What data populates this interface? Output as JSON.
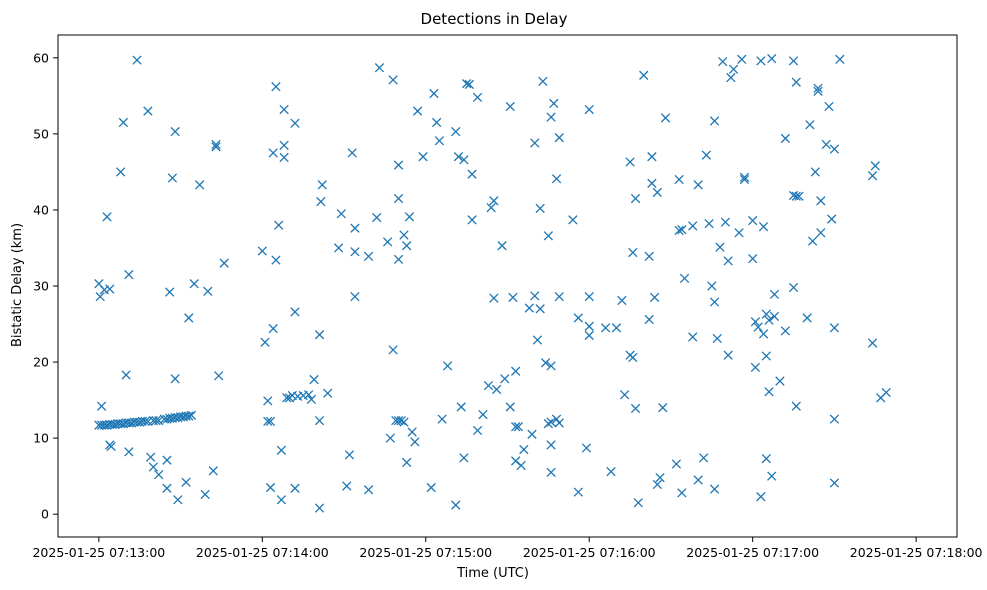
{
  "chart_data": {
    "type": "scatter",
    "title": "Detections in Delay",
    "xlabel": "Time (UTC)",
    "ylabel": "Bistatic Delay (km)",
    "marker": "x",
    "color": "#1f77b4",
    "grid": false,
    "legend": "none",
    "x_unit": "seconds after 2025-01-25 07:13:00",
    "xlim": [
      -15,
      315
    ],
    "ylim": [
      -3,
      63
    ],
    "x_ticks": [
      {
        "value": 0,
        "label": "2025-01-25 07:13:00"
      },
      {
        "value": 60,
        "label": "2025-01-25 07:14:00"
      },
      {
        "value": 120,
        "label": "2025-01-25 07:15:00"
      },
      {
        "value": 180,
        "label": "2025-01-25 07:16:00"
      },
      {
        "value": 240,
        "label": "2025-01-25 07:17:00"
      },
      {
        "value": 300,
        "label": "2025-01-25 07:18:00"
      }
    ],
    "y_ticks": [
      {
        "value": 0,
        "label": "0"
      },
      {
        "value": 10,
        "label": "10"
      },
      {
        "value": 20,
        "label": "20"
      },
      {
        "value": 30,
        "label": "30"
      },
      {
        "value": 40,
        "label": "40"
      },
      {
        "value": 50,
        "label": "50"
      },
      {
        "value": 60,
        "label": "60"
      }
    ],
    "series": [
      {
        "points": [
          [
            0.0,
            11.7
          ],
          [
            1.0,
            11.7
          ],
          [
            2.0,
            11.7
          ],
          [
            3.0,
            11.7
          ],
          [
            4.0,
            11.8
          ],
          [
            5.0,
            11.8
          ],
          [
            6.0,
            11.8
          ],
          [
            7.0,
            11.9
          ],
          [
            8.0,
            11.9
          ],
          [
            9.0,
            11.9
          ],
          [
            10.0,
            12.0
          ],
          [
            11.0,
            12.0
          ],
          [
            12.0,
            12.0
          ],
          [
            13.0,
            12.1
          ],
          [
            14.0,
            12.1
          ],
          [
            15.0,
            12.1
          ],
          [
            16.0,
            12.2
          ],
          [
            17.0,
            12.2
          ],
          [
            18.0,
            12.2
          ],
          [
            20.0,
            12.3
          ],
          [
            21.0,
            12.3
          ],
          [
            22.0,
            12.3
          ],
          [
            24.0,
            12.5
          ],
          [
            25.0,
            12.5
          ],
          [
            26.0,
            12.6
          ],
          [
            27.0,
            12.6
          ],
          [
            28.0,
            12.7
          ],
          [
            29.0,
            12.7
          ],
          [
            30.0,
            12.8
          ],
          [
            31.0,
            12.8
          ],
          [
            32.0,
            12.9
          ],
          [
            33.0,
            12.9
          ],
          [
            34.0,
            13.0
          ],
          [
            0.0,
            30.3
          ],
          [
            0.5,
            28.6
          ],
          [
            1.0,
            14.2
          ],
          [
            2.0,
            29.5
          ],
          [
            3.0,
            39.1
          ],
          [
            4.0,
            9.1
          ],
          [
            4.5,
            8.9
          ],
          [
            4.0,
            29.6
          ],
          [
            8.0,
            45.0
          ],
          [
            9.0,
            51.5
          ],
          [
            10.0,
            18.3
          ],
          [
            11.0,
            8.2
          ],
          [
            11.0,
            31.5
          ],
          [
            14.0,
            59.7
          ],
          [
            18.0,
            53.0
          ],
          [
            19.0,
            7.5
          ],
          [
            20.0,
            6.2
          ],
          [
            22.0,
            5.2
          ],
          [
            25.0,
            7.1
          ],
          [
            25.0,
            3.4
          ],
          [
            26.0,
            29.2
          ],
          [
            27.0,
            44.2
          ],
          [
            28.0,
            50.3
          ],
          [
            28.0,
            17.8
          ],
          [
            29.0,
            1.9
          ],
          [
            32.0,
            4.2
          ],
          [
            33.0,
            25.8
          ],
          [
            35.0,
            30.3
          ],
          [
            37.0,
            43.3
          ],
          [
            39.0,
            2.6
          ],
          [
            40.0,
            29.3
          ],
          [
            42.0,
            5.7
          ],
          [
            43.0,
            48.6
          ],
          [
            43.0,
            48.3
          ],
          [
            44.0,
            18.2
          ],
          [
            46.0,
            33.0
          ],
          [
            60.0,
            34.6
          ],
          [
            61.0,
            22.6
          ],
          [
            62.0,
            12.2
          ],
          [
            62.0,
            14.9
          ],
          [
            63.0,
            12.2
          ],
          [
            63.0,
            3.5
          ],
          [
            64.0,
            47.5
          ],
          [
            64.0,
            24.4
          ],
          [
            65.0,
            56.2
          ],
          [
            65.0,
            33.4
          ],
          [
            66.0,
            38.0
          ],
          [
            67.0,
            8.4
          ],
          [
            67.0,
            1.9
          ],
          [
            68.0,
            46.9
          ],
          [
            68.0,
            48.5
          ],
          [
            68.0,
            53.2
          ],
          [
            69.0,
            15.3
          ],
          [
            70.0,
            15.3
          ],
          [
            71.0,
            15.6
          ],
          [
            72.0,
            51.4
          ],
          [
            72.0,
            26.6
          ],
          [
            72.0,
            3.4
          ],
          [
            73.0,
            15.5
          ],
          [
            75.0,
            15.6
          ],
          [
            77.0,
            15.7
          ],
          [
            78.0,
            15.1
          ],
          [
            79.0,
            17.7
          ],
          [
            81.0,
            23.6
          ],
          [
            81.0,
            0.8
          ],
          [
            81.0,
            12.3
          ],
          [
            81.5,
            41.1
          ],
          [
            82.0,
            43.3
          ],
          [
            84.0,
            15.9
          ],
          [
            88.0,
            35.0
          ],
          [
            89.0,
            39.5
          ],
          [
            91.0,
            3.7
          ],
          [
            92.0,
            7.8
          ],
          [
            93.0,
            47.5
          ],
          [
            94.0,
            37.6
          ],
          [
            94.0,
            34.5
          ],
          [
            94.0,
            28.6
          ],
          [
            99.0,
            33.9
          ],
          [
            99.0,
            3.2
          ],
          [
            102.0,
            39.0
          ],
          [
            103.0,
            58.7
          ],
          [
            106.0,
            35.8
          ],
          [
            107.0,
            10.0
          ],
          [
            108.0,
            21.6
          ],
          [
            108.0,
            57.1
          ],
          [
            109.0,
            12.3
          ],
          [
            110.0,
            12.3
          ],
          [
            110.0,
            41.5
          ],
          [
            110.0,
            45.9
          ],
          [
            110.0,
            33.5
          ],
          [
            111.0,
            12.3
          ],
          [
            112.0,
            12.1
          ],
          [
            112.0,
            36.7
          ],
          [
            113.0,
            6.8
          ],
          [
            113.0,
            35.3
          ],
          [
            114.0,
            39.1
          ],
          [
            115.0,
            10.8
          ],
          [
            116.0,
            9.5
          ],
          [
            117.0,
            53.0
          ],
          [
            119.0,
            47.0
          ],
          [
            122.0,
            3.5
          ],
          [
            123.0,
            55.3
          ],
          [
            124.0,
            51.5
          ],
          [
            125.0,
            49.1
          ],
          [
            126.0,
            12.5
          ],
          [
            128.0,
            19.5
          ],
          [
            131.0,
            50.3
          ],
          [
            131.0,
            1.2
          ],
          [
            132.0,
            47.0
          ],
          [
            133.0,
            14.1
          ],
          [
            134.0,
            7.4
          ],
          [
            134.0,
            46.6
          ],
          [
            135.0,
            56.6
          ],
          [
            136.0,
            56.5
          ],
          [
            137.0,
            38.7
          ],
          [
            137.0,
            44.7
          ],
          [
            139.0,
            54.8
          ],
          [
            139.0,
            11.0
          ],
          [
            141.0,
            13.1
          ],
          [
            143.0,
            16.9
          ],
          [
            144.0,
            40.3
          ],
          [
            145.0,
            41.2
          ],
          [
            145.0,
            28.4
          ],
          [
            146.0,
            16.4
          ],
          [
            148.0,
            35.3
          ],
          [
            149.0,
            17.8
          ],
          [
            151.0,
            53.6
          ],
          [
            151.0,
            14.1
          ],
          [
            152.0,
            28.5
          ],
          [
            153.0,
            18.8
          ],
          [
            153.0,
            11.5
          ],
          [
            153.0,
            7.0
          ],
          [
            154.0,
            11.5
          ],
          [
            155.0,
            6.4
          ],
          [
            156.0,
            8.5
          ],
          [
            158.0,
            27.1
          ],
          [
            159.0,
            10.5
          ],
          [
            160.0,
            48.8
          ],
          [
            160.0,
            28.7
          ],
          [
            161.0,
            22.9
          ],
          [
            162.0,
            40.2
          ],
          [
            162.0,
            27.0
          ],
          [
            163.0,
            56.9
          ],
          [
            164.0,
            19.9
          ],
          [
            165.0,
            11.9
          ],
          [
            165.0,
            36.6
          ],
          [
            166.0,
            12.1
          ],
          [
            166.0,
            19.5
          ],
          [
            166.0,
            52.2
          ],
          [
            166.0,
            5.5
          ],
          [
            166.0,
            9.1
          ],
          [
            167.0,
            54.0
          ],
          [
            168.0,
            12.5
          ],
          [
            168.0,
            44.1
          ],
          [
            169.0,
            49.5
          ],
          [
            169.0,
            28.6
          ],
          [
            169.0,
            12.0
          ],
          [
            174.0,
            38.7
          ],
          [
            176.0,
            25.8
          ],
          [
            176.0,
            2.9
          ],
          [
            179.0,
            8.7
          ],
          [
            180.0,
            53.2
          ],
          [
            180.0,
            28.6
          ],
          [
            180.0,
            24.7
          ],
          [
            180.0,
            23.5
          ],
          [
            186.0,
            24.5
          ],
          [
            188.0,
            5.6
          ],
          [
            190.0,
            24.5
          ],
          [
            192.0,
            28.1
          ],
          [
            193.0,
            15.7
          ],
          [
            195.0,
            20.9
          ],
          [
            195.0,
            46.3
          ],
          [
            196.0,
            20.6
          ],
          [
            196.0,
            34.4
          ],
          [
            197.0,
            13.9
          ],
          [
            197.0,
            41.5
          ],
          [
            198.0,
            1.5
          ],
          [
            200.0,
            57.7
          ],
          [
            202.0,
            33.9
          ],
          [
            202.0,
            25.6
          ],
          [
            203.0,
            47.0
          ],
          [
            203.0,
            43.5
          ],
          [
            204.0,
            28.5
          ],
          [
            205.0,
            42.3
          ],
          [
            205.0,
            3.9
          ],
          [
            206.0,
            4.8
          ],
          [
            207.0,
            14.0
          ],
          [
            208.0,
            52.1
          ],
          [
            212.0,
            6.6
          ],
          [
            213.0,
            37.3
          ],
          [
            213.0,
            44.0
          ],
          [
            214.0,
            37.4
          ],
          [
            214.0,
            2.8
          ],
          [
            215.0,
            31.0
          ],
          [
            218.0,
            23.3
          ],
          [
            218.0,
            37.9
          ],
          [
            220.0,
            43.3
          ],
          [
            220.0,
            4.5
          ],
          [
            222.0,
            7.4
          ],
          [
            223.0,
            47.2
          ],
          [
            224.0,
            38.2
          ],
          [
            225.0,
            30.0
          ],
          [
            226.0,
            27.9
          ],
          [
            226.0,
            51.7
          ],
          [
            226.0,
            3.3
          ],
          [
            227.0,
            23.1
          ],
          [
            228.0,
            35.1
          ],
          [
            229.0,
            59.5
          ],
          [
            230.0,
            38.4
          ],
          [
            231.0,
            20.9
          ],
          [
            231.0,
            33.3
          ],
          [
            232.0,
            57.4
          ],
          [
            233.0,
            58.5
          ],
          [
            235.0,
            37.0
          ],
          [
            236.0,
            59.8
          ],
          [
            237.0,
            44.3
          ],
          [
            237.0,
            44.0
          ],
          [
            240.0,
            33.6
          ],
          [
            240.0,
            38.6
          ],
          [
            241.0,
            25.3
          ],
          [
            241.0,
            19.3
          ],
          [
            242.0,
            24.6
          ],
          [
            243.0,
            59.6
          ],
          [
            243.0,
            2.3
          ],
          [
            244.0,
            37.8
          ],
          [
            244.0,
            23.7
          ],
          [
            245.0,
            20.8
          ],
          [
            245.0,
            26.3
          ],
          [
            245.0,
            7.3
          ],
          [
            246.0,
            25.5
          ],
          [
            246.0,
            16.1
          ],
          [
            247.0,
            59.9
          ],
          [
            247.0,
            5.0
          ],
          [
            248.0,
            28.9
          ],
          [
            248.0,
            26.0
          ],
          [
            250.0,
            17.5
          ],
          [
            252.0,
            24.1
          ],
          [
            252.0,
            49.4
          ],
          [
            255.0,
            29.8
          ],
          [
            255.0,
            41.9
          ],
          [
            255.0,
            59.6
          ],
          [
            256.0,
            56.8
          ],
          [
            256.0,
            41.8
          ],
          [
            256.0,
            14.2
          ],
          [
            257.0,
            41.8
          ],
          [
            260.0,
            25.8
          ],
          [
            261.0,
            51.2
          ],
          [
            262.0,
            35.9
          ],
          [
            263.0,
            45.0
          ],
          [
            264.0,
            55.6
          ],
          [
            264.0,
            56.0
          ],
          [
            265.0,
            37.0
          ],
          [
            265.0,
            41.2
          ],
          [
            267.0,
            48.6
          ],
          [
            268.0,
            53.6
          ],
          [
            269.0,
            38.8
          ],
          [
            270.0,
            48.0
          ],
          [
            270.0,
            24.5
          ],
          [
            270.0,
            12.5
          ],
          [
            270.0,
            4.1
          ],
          [
            272.0,
            59.8
          ],
          [
            284.0,
            44.5
          ],
          [
            284.0,
            22.5
          ],
          [
            285.0,
            45.8
          ],
          [
            287.0,
            15.3
          ],
          [
            289.0,
            16.0
          ]
        ]
      }
    ]
  }
}
